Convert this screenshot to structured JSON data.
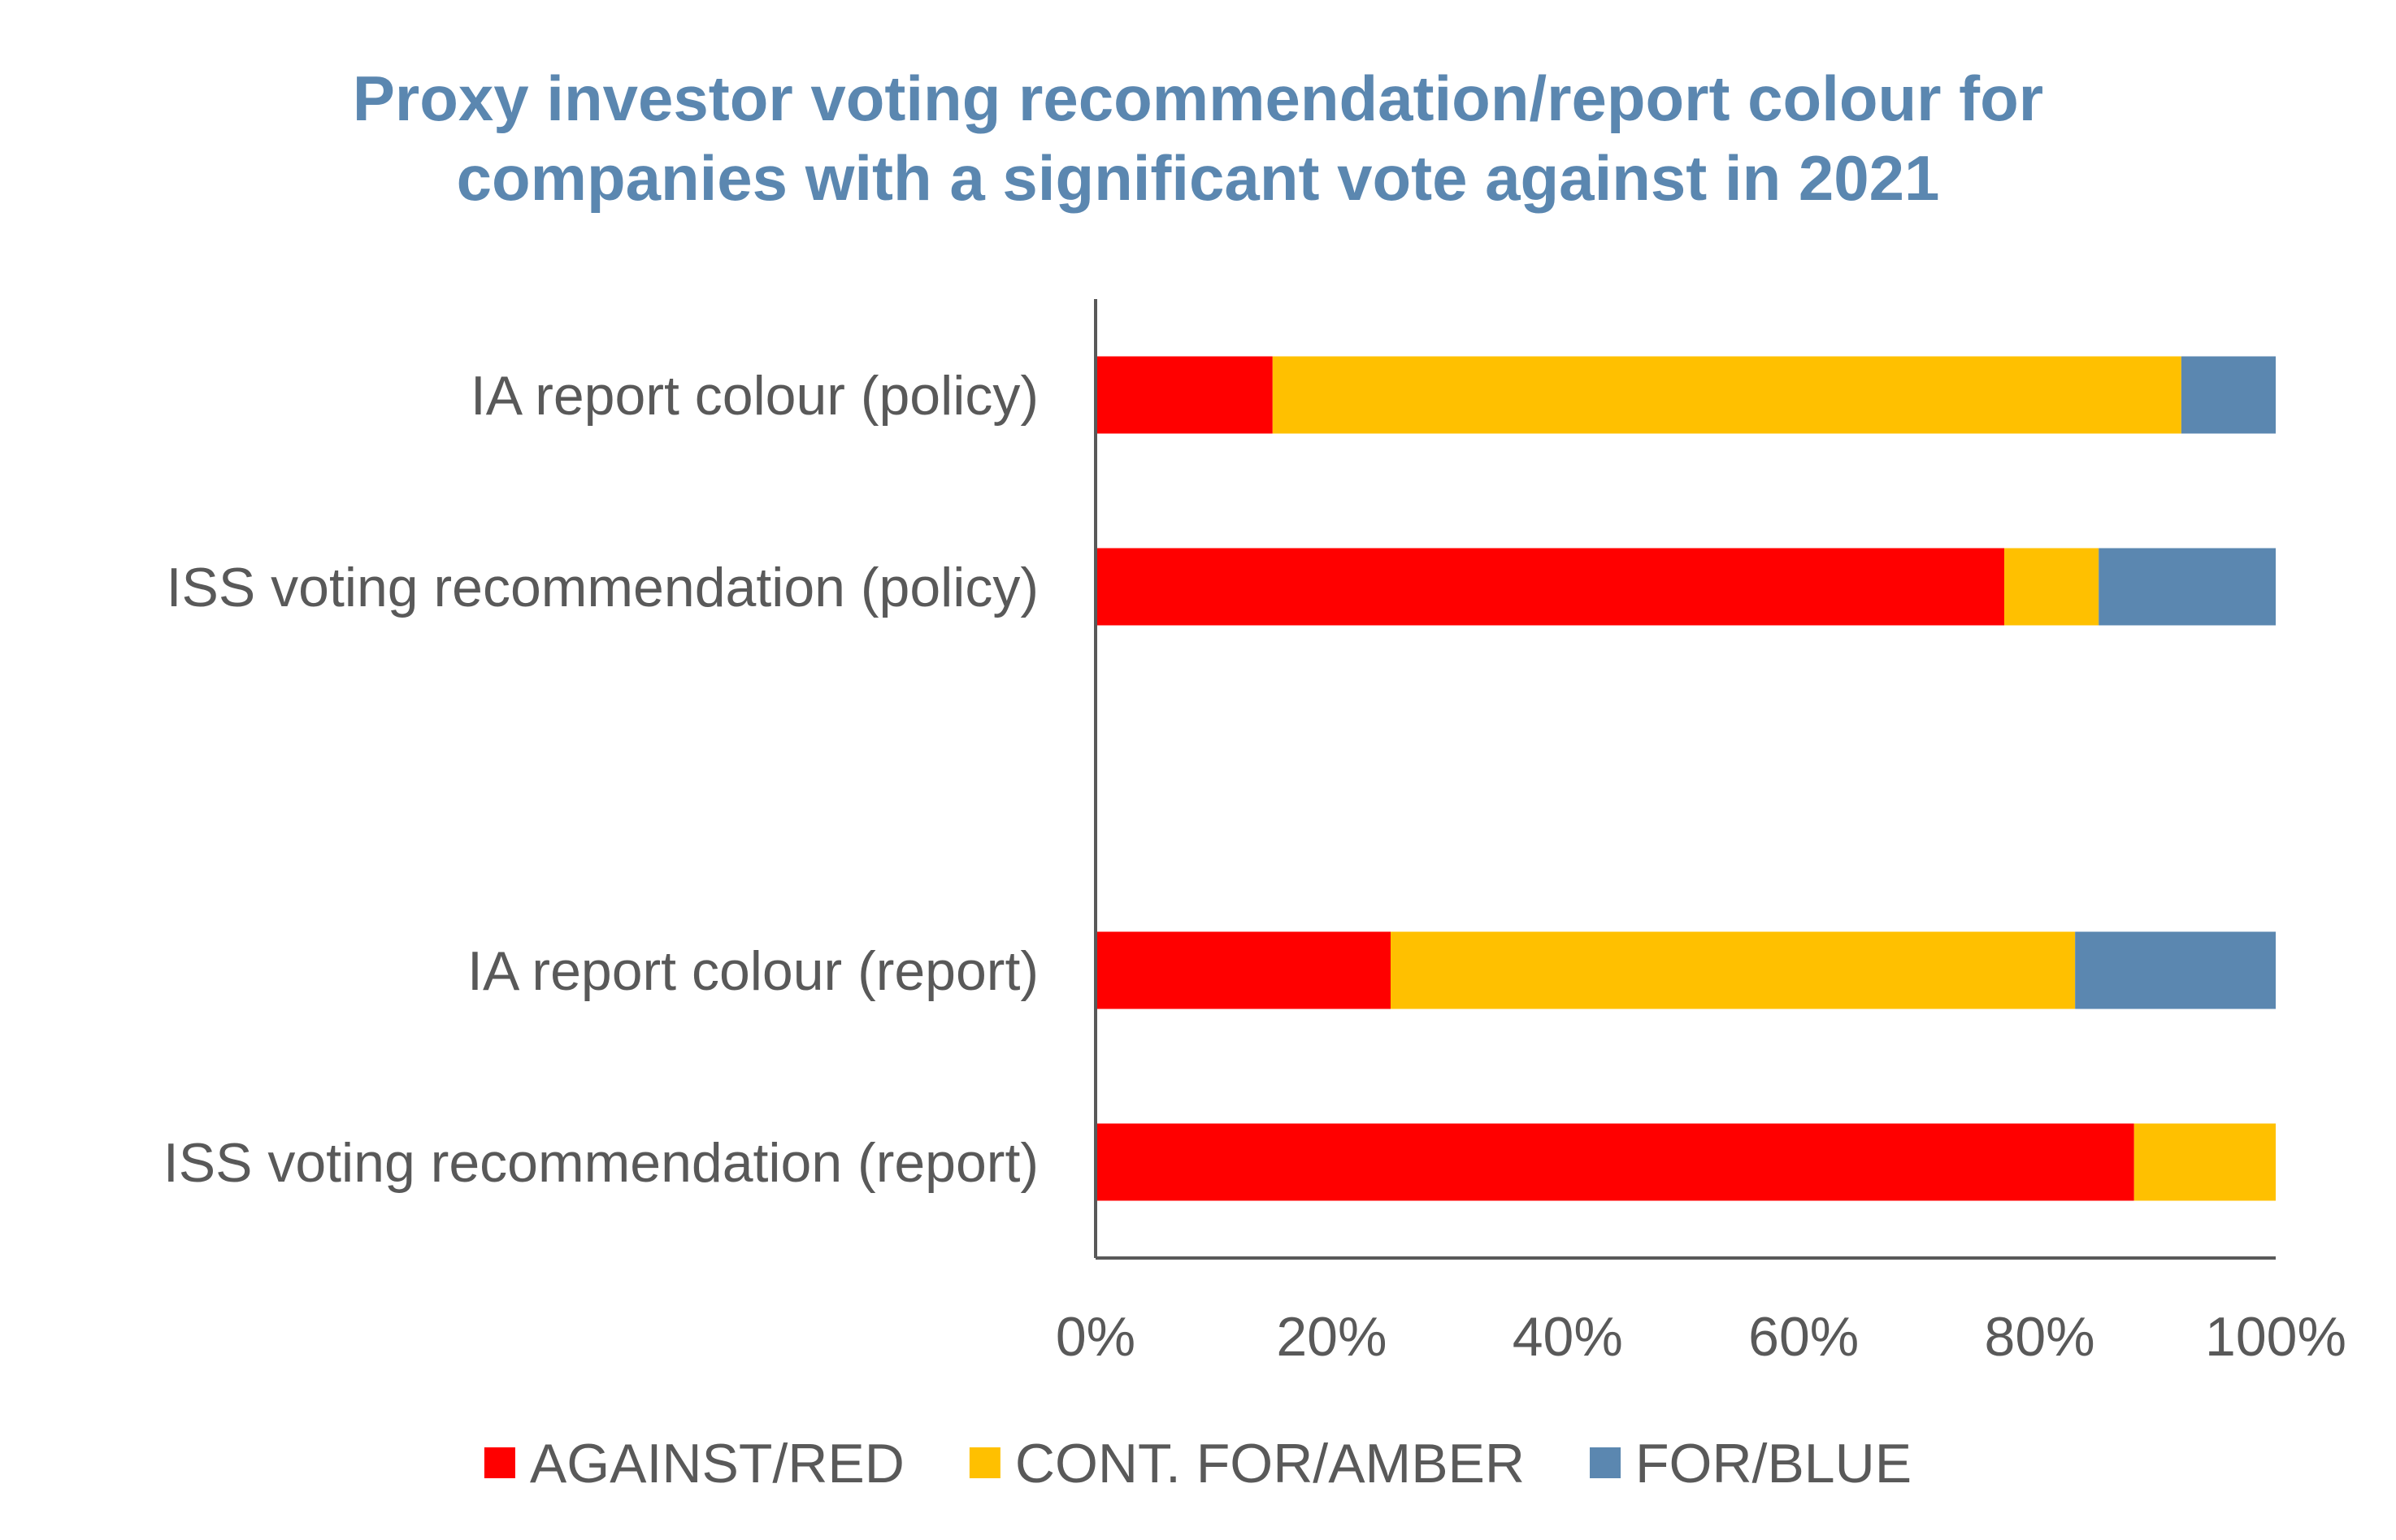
{
  "title_lines": [
    "Proxy investor voting recommendation/report colour for",
    "companies with a significant vote against in 2021"
  ],
  "colors": {
    "title": "#5B87B0",
    "text": "#595959",
    "axis": "#595959"
  },
  "chart_data": {
    "type": "bar",
    "orientation": "horizontal",
    "stacked": true,
    "percent_stacked": true,
    "title": "Proxy investor voting recommendation/report colour for companies with a significant vote against in 2021",
    "xlabel": "",
    "ylabel": "",
    "xlim": [
      0,
      100
    ],
    "x_ticks": [
      "0%",
      "20%",
      "40%",
      "60%",
      "80%",
      "100%"
    ],
    "grid": false,
    "legend_position": "bottom",
    "categories": [
      "IA report colour (policy)",
      "ISS voting recommendation (policy)",
      "",
      "IA report colour (report)",
      "ISS voting recommendation (report)"
    ],
    "series": [
      {
        "name": "AGAINST/RED",
        "color": "#FF0000",
        "values": [
          15,
          77,
          null,
          25,
          88
        ]
      },
      {
        "name": "CONT. FOR/AMBER",
        "color": "#FFC000",
        "values": [
          77,
          8,
          null,
          58,
          12
        ]
      },
      {
        "name": "FOR/BLUE",
        "color": "#5B87B0",
        "values": [
          8,
          15,
          null,
          17,
          0
        ]
      }
    ]
  }
}
